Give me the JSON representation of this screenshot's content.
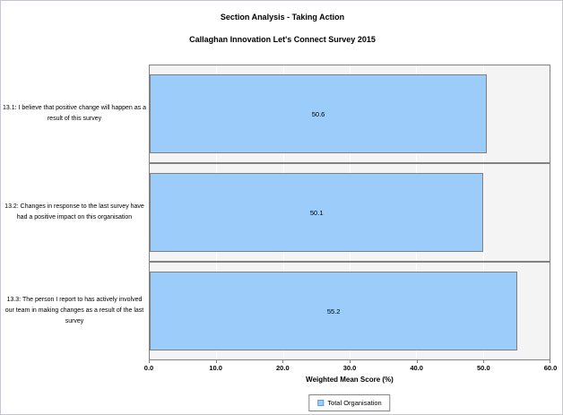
{
  "chart_data": {
    "type": "bar",
    "orientation": "horizontal",
    "title": "Section Analysis - Taking Action",
    "subtitle": "Callaghan Innovation Let's Connect Survey 2015",
    "categories": [
      "13.1: I believe that positive change will happen as a result of this survey",
      "13.2: Changes in response to the last survey have had a positive impact on this organisation",
      "13.3: The person I report to has actively involved our team in making changes as a result of the last survey"
    ],
    "series": [
      {
        "name": "Total Organisation",
        "values": [
          50.6,
          50.1,
          55.2
        ]
      }
    ],
    "value_labels": [
      "50.6",
      "50.1",
      "55.2"
    ],
    "xlabel": "Weighted Mean Score (%)",
    "xlim": [
      0,
      60
    ],
    "xticks": [
      0,
      10,
      20,
      30,
      40,
      50,
      60
    ],
    "xtick_labels": [
      "0.0",
      "10.0",
      "20.0",
      "30.0",
      "40.0",
      "50.0",
      "60.0"
    ],
    "grid": true,
    "legend_position": "bottom-center",
    "colors": {
      "bar_fill": "#9bccfa",
      "bar_border": "#7f7f7f",
      "panel_background": "#f4f4f4",
      "panel_border": "#828282",
      "gridline": "#ffffff",
      "text": "#000000"
    }
  }
}
